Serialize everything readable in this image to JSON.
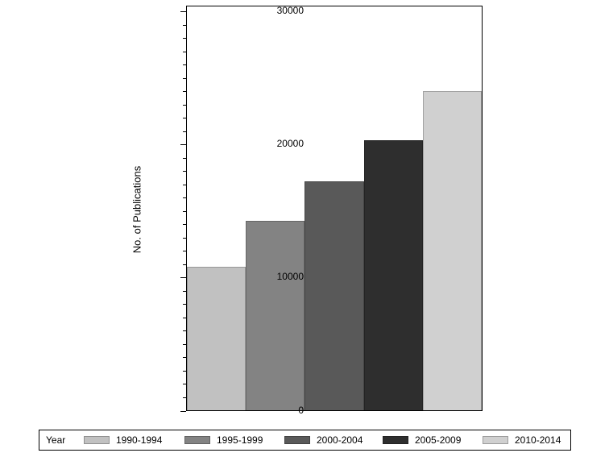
{
  "chart_data": {
    "type": "bar",
    "title": "",
    "categories": [
      "1990-1994",
      "1995-1999",
      "2000-2004",
      "2005-2009",
      "2010-2014"
    ],
    "values": [
      10800,
      14200,
      17200,
      20300,
      24000
    ],
    "xlabel": "",
    "ylabel": "No. of Publications",
    "ylim": [
      0,
      30000
    ],
    "yticks": [
      0,
      10000,
      20000,
      30000
    ],
    "ytick_labels": [
      "0",
      "10000",
      "20000",
      "30000"
    ],
    "minor_tick_interval": 1000,
    "grid": false,
    "bar_colors": [
      "#c1c1c1",
      "#838383",
      "#595959",
      "#2e2e2e",
      "#d0d0d0"
    ],
    "legend_title": "Year",
    "legend_position": "bottom"
  }
}
